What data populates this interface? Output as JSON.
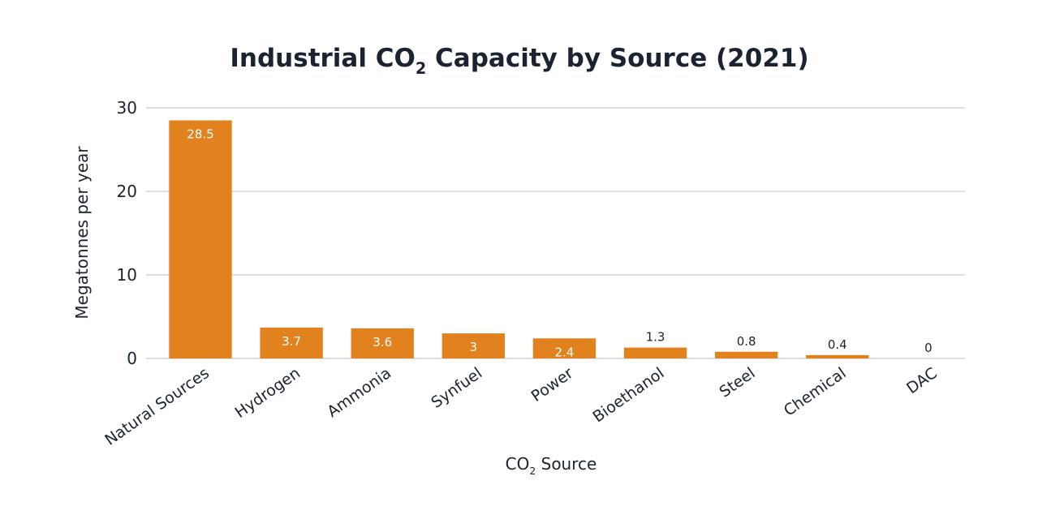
{
  "chart_data": {
    "type": "bar",
    "title_main": "Industrial CO",
    "title_sub": "2",
    "title_rest": " Capacity by Source (2021)",
    "xlabel_main": "CO",
    "xlabel_sub": "2",
    "xlabel_rest": " Source",
    "ylabel": "Megatonnes per year",
    "ylim": [
      0,
      30
    ],
    "yticks": [
      0,
      10,
      20,
      30
    ],
    "categories": [
      "Natural Sources",
      "Hydrogen",
      "Ammonia",
      "Synfuel",
      "Power",
      "Bioethanol",
      "Steel",
      "Chemical",
      "DAC"
    ],
    "values": [
      28.5,
      3.7,
      3.6,
      3,
      2.4,
      1.3,
      0.8,
      0.4,
      0
    ],
    "data_labels": [
      "28.5",
      "3.7",
      "3.6",
      "3",
      "2.4",
      "1.3",
      "0.8",
      "0.4",
      "0"
    ],
    "bar_color": "#e2821e",
    "grid_color": "#cccccc",
    "grid": true
  }
}
